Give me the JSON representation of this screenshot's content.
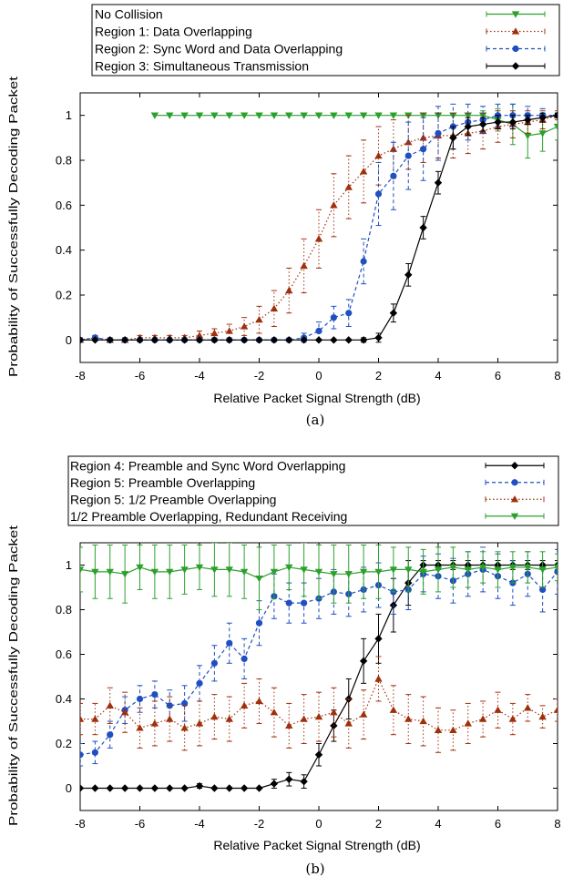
{
  "chart_data": [
    {
      "type": "line",
      "caption": "(a)",
      "xlabel": "Relative Packet Signal Strength (dB)",
      "ylabel": "Probability of Successfully Decoding Packet",
      "xlim": [
        -8,
        8
      ],
      "ylim": [
        -0.1,
        1.1
      ],
      "xticks": [
        "-8",
        "-6",
        "-4",
        "-2",
        "0",
        "2",
        "4",
        "6",
        "8"
      ],
      "yticks": [
        "0",
        "0.2",
        "0.4",
        "0.6",
        "0.8",
        "1"
      ],
      "xtick_values": [
        -8,
        -6,
        -4,
        -2,
        0,
        2,
        4,
        6,
        8
      ],
      "ytick_values": [
        0,
        0.2,
        0.4,
        0.6,
        0.8,
        1
      ],
      "legend_position": "top",
      "series": [
        {
          "name": "No Collision",
          "color": "#2ca02c",
          "marker": "triangle-down",
          "dash": "solid",
          "x": [
            -5.5,
            -5,
            -4.5,
            -4,
            -3.5,
            -3,
            -2.5,
            -2,
            -1.5,
            -1,
            -0.5,
            0,
            0.5,
            1,
            1.5,
            2,
            2.5,
            3,
            3.5,
            4,
            4.5,
            5,
            5.5,
            6,
            6.5,
            7,
            7.5,
            8
          ],
          "y": [
            1,
            1,
            1,
            1,
            1,
            1,
            1,
            1,
            1,
            1,
            1,
            1,
            1,
            1,
            1,
            1,
            1,
            1,
            1,
            1,
            1,
            1,
            1,
            0.98,
            0.96,
            0.91,
            0.92,
            0.95
          ],
          "err": [
            0,
            0,
            0,
            0,
            0,
            0,
            0,
            0,
            0,
            0,
            0,
            0,
            0,
            0,
            0,
            0,
            0,
            0,
            0,
            0,
            0,
            0,
            0.02,
            0.05,
            0.09,
            0.1,
            0.08,
            0.06
          ]
        },
        {
          "name": "Region 1: Data Overlapping",
          "color": "#a0300c",
          "marker": "triangle-up",
          "dash": "dotted",
          "x": [
            -8,
            -7.5,
            -7,
            -6.5,
            -6,
            -5.5,
            -5,
            -4.5,
            -4,
            -3.5,
            -3,
            -2.5,
            -2,
            -1.5,
            -1,
            -0.5,
            0,
            0.5,
            1,
            1.5,
            2,
            2.5,
            3,
            3.5,
            4,
            4.5,
            5,
            5.5,
            6,
            6.5,
            7,
            7.5,
            8
          ],
          "y": [
            0,
            0.01,
            0,
            0,
            0.01,
            0.01,
            0.01,
            0.01,
            0.02,
            0.03,
            0.04,
            0.06,
            0.09,
            0.14,
            0.22,
            0.33,
            0.45,
            0.6,
            0.68,
            0.75,
            0.82,
            0.85,
            0.88,
            0.9,
            0.91,
            0.91,
            0.92,
            0.93,
            0.95,
            0.96,
            0.97,
            0.98,
            1
          ],
          "err": [
            0.01,
            0.01,
            0.01,
            0.01,
            0.01,
            0.01,
            0.01,
            0.01,
            0.02,
            0.02,
            0.03,
            0.04,
            0.06,
            0.08,
            0.1,
            0.12,
            0.13,
            0.14,
            0.14,
            0.14,
            0.13,
            0.13,
            0.12,
            0.11,
            0.1,
            0.1,
            0.09,
            0.08,
            0.07,
            0.06,
            0.05,
            0.04,
            0.02
          ]
        },
        {
          "name": "Region 2: Sync Word and Data Overlapping",
          "color": "#1f4fc0",
          "marker": "circle",
          "dash": "dashed",
          "x": [
            -8,
            -7.5,
            -7,
            -6.5,
            -6,
            -5.5,
            -5,
            -4.5,
            -4,
            -3.5,
            -3,
            -2.5,
            -2,
            -1.5,
            -1,
            -0.5,
            0,
            0.5,
            1,
            1.5,
            2,
            2.5,
            3,
            3.5,
            4,
            4.5,
            5,
            5.5,
            6,
            6.5,
            7,
            7.5,
            8
          ],
          "y": [
            0,
            0.01,
            0,
            0,
            0,
            0,
            0,
            0,
            0,
            0,
            0,
            0,
            0,
            0,
            0,
            0.01,
            0.04,
            0.1,
            0.12,
            0.35,
            0.65,
            0.73,
            0.82,
            0.85,
            0.92,
            0.95,
            0.97,
            0.98,
            1,
            1,
            1,
            1,
            1
          ],
          "err": [
            0,
            0.01,
            0,
            0,
            0,
            0,
            0,
            0,
            0,
            0,
            0,
            0,
            0,
            0,
            0,
            0.02,
            0.04,
            0.05,
            0.06,
            0.1,
            0.14,
            0.15,
            0.15,
            0.14,
            0.12,
            0.1,
            0.08,
            0.06,
            0.05,
            0.05,
            0.04,
            0.03,
            0.01
          ]
        },
        {
          "name": "Region 3: Simultaneous Transmission",
          "color": "#000000",
          "marker": "diamond",
          "dash": "solid",
          "x": [
            -8,
            -7.5,
            -7,
            -6.5,
            -6,
            -5.5,
            -5,
            -4.5,
            -4,
            -3.5,
            -3,
            -2.5,
            -2,
            -1.5,
            -1,
            -0.5,
            0,
            0.5,
            1,
            1.5,
            2,
            2.5,
            3,
            3.5,
            4,
            4.5,
            5,
            5.5,
            6,
            6.5,
            7,
            7.5,
            8
          ],
          "y": [
            0,
            0,
            0,
            0,
            0,
            0,
            0,
            0,
            0,
            0,
            0,
            0,
            0,
            0,
            0,
            0,
            0,
            0,
            0,
            0,
            0.01,
            0.12,
            0.29,
            0.5,
            0.7,
            0.9,
            0.95,
            0.96,
            0.97,
            0.97,
            0.98,
            0.99,
            1
          ],
          "err": [
            0,
            0,
            0,
            0,
            0,
            0,
            0,
            0,
            0,
            0,
            0,
            0,
            0,
            0,
            0,
            0,
            0,
            0,
            0,
            0.01,
            0.02,
            0.04,
            0.05,
            0.05,
            0.05,
            0.05,
            0.04,
            0.03,
            0.03,
            0.03,
            0.02,
            0.02,
            0.01
          ]
        }
      ]
    },
    {
      "type": "line",
      "caption": "(b)",
      "xlabel": "Relative Packet Signal Strength (dB)",
      "ylabel": "Probability of Successfully Decoding Packet",
      "xlim": [
        -8,
        8
      ],
      "ylim": [
        -0.1,
        1.1
      ],
      "xticks": [
        "-8",
        "-6",
        "-4",
        "-2",
        "0",
        "2",
        "4",
        "6",
        "8"
      ],
      "yticks": [
        "0",
        "0.2",
        "0.4",
        "0.6",
        "0.8",
        "1"
      ],
      "xtick_values": [
        -8,
        -6,
        -4,
        -2,
        0,
        2,
        4,
        6,
        8
      ],
      "ytick_values": [
        0,
        0.2,
        0.4,
        0.6,
        0.8,
        1
      ],
      "legend_position": "top",
      "series": [
        {
          "name": "Region 4: Preamble and Sync Word Overlapping",
          "color": "#000000",
          "marker": "diamond",
          "dash": "solid",
          "x": [
            -8,
            -7.5,
            -7,
            -6.5,
            -6,
            -5.5,
            -5,
            -4.5,
            -4,
            -3.5,
            -3,
            -2.5,
            -2,
            -1.5,
            -1,
            -0.5,
            0,
            0.5,
            1,
            1.5,
            2,
            2.5,
            3,
            3.5,
            4,
            4.5,
            5,
            5.5,
            6,
            6.5,
            7,
            7.5,
            8
          ],
          "y": [
            0,
            0,
            0,
            0,
            0,
            0,
            0,
            0,
            0.01,
            0,
            0,
            0,
            0,
            0.02,
            0.04,
            0.03,
            0.15,
            0.28,
            0.4,
            0.57,
            0.67,
            0.82,
            0.92,
            1,
            1,
            1,
            1,
            1,
            1,
            1,
            1,
            1,
            1
          ],
          "err": [
            0,
            0,
            0,
            0,
            0,
            0,
            0,
            0,
            0.01,
            0,
            0,
            0,
            0,
            0.02,
            0.03,
            0.03,
            0.05,
            0.07,
            0.09,
            0.1,
            0.11,
            0.12,
            0.1,
            0.02,
            0.02,
            0.02,
            0.02,
            0.02,
            0.02,
            0.02,
            0.02,
            0.02,
            0.02
          ]
        },
        {
          "name": "Region 5: Preamble Overlapping",
          "color": "#1f4fc0",
          "marker": "circle",
          "dash": "dashed",
          "x": [
            -8,
            -7.5,
            -7,
            -6.5,
            -6,
            -5.5,
            -5,
            -4.5,
            -4,
            -3.5,
            -3,
            -2.5,
            -2,
            -1.5,
            -1,
            -0.5,
            0,
            0.5,
            1,
            1.5,
            2,
            2.5,
            3,
            3.5,
            4,
            4.5,
            5,
            5.5,
            6,
            6.5,
            7,
            7.5,
            8
          ],
          "y": [
            0.15,
            0.16,
            0.24,
            0.35,
            0.4,
            0.42,
            0.37,
            0.38,
            0.47,
            0.56,
            0.65,
            0.58,
            0.74,
            0.86,
            0.83,
            0.83,
            0.85,
            0.88,
            0.87,
            0.89,
            0.91,
            0.88,
            0.89,
            0.96,
            0.95,
            0.93,
            0.96,
            0.98,
            0.95,
            0.92,
            0.96,
            0.89,
            0.97
          ],
          "err": [
            0.05,
            0.05,
            0.06,
            0.06,
            0.06,
            0.06,
            0.07,
            0.08,
            0.08,
            0.08,
            0.09,
            0.09,
            0.1,
            0.1,
            0.09,
            0.09,
            0.09,
            0.1,
            0.1,
            0.1,
            0.1,
            0.1,
            0.09,
            0.08,
            0.1,
            0.1,
            0.1,
            0.1,
            0.1,
            0.1,
            0.1,
            0.1,
            0.1
          ]
        },
        {
          "name": "Region 5: 1/2 Preamble Overlapping",
          "color": "#a0300c",
          "marker": "triangle-up",
          "dash": "dotted",
          "x": [
            -8,
            -7.5,
            -7,
            -6.5,
            -6,
            -5.5,
            -5,
            -4.5,
            -4,
            -3.5,
            -3,
            -2.5,
            -2,
            -1.5,
            -1,
            -0.5,
            0,
            0.5,
            1,
            1.5,
            2,
            2.5,
            3,
            3.5,
            4,
            4.5,
            5,
            5.5,
            6,
            6.5,
            7,
            7.5,
            8
          ],
          "y": [
            0.31,
            0.31,
            0.37,
            0.34,
            0.27,
            0.29,
            0.31,
            0.27,
            0.29,
            0.32,
            0.31,
            0.37,
            0.39,
            0.34,
            0.28,
            0.31,
            0.32,
            0.34,
            0.29,
            0.33,
            0.49,
            0.35,
            0.31,
            0.3,
            0.26,
            0.26,
            0.29,
            0.31,
            0.35,
            0.31,
            0.36,
            0.32,
            0.35
          ],
          "err": [
            0.07,
            0.07,
            0.08,
            0.09,
            0.09,
            0.1,
            0.1,
            0.1,
            0.1,
            0.1,
            0.1,
            0.1,
            0.1,
            0.11,
            0.1,
            0.11,
            0.11,
            0.11,
            0.11,
            0.11,
            0.1,
            0.11,
            0.11,
            0.11,
            0.1,
            0.09,
            0.09,
            0.08,
            0.08,
            0.07,
            0.06,
            0.05,
            0.05
          ]
        },
        {
          "name": "1/2 Preamble Overlapping, Redundant Receiving",
          "color": "#2ca02c",
          "marker": "triangle-down",
          "dash": "solid",
          "x": [
            -8,
            -7.5,
            -7,
            -6.5,
            -6,
            -5.5,
            -5,
            -4.5,
            -4,
            -3.5,
            -3,
            -2.5,
            -2,
            -1.5,
            -1,
            -0.5,
            0,
            0.5,
            1,
            1.5,
            2,
            2.5,
            3,
            3.5,
            4,
            4.5,
            5,
            5.5,
            6,
            6.5,
            7,
            7.5,
            8
          ],
          "y": [
            0.98,
            0.97,
            0.97,
            0.96,
            0.99,
            0.97,
            0.97,
            0.98,
            0.99,
            0.98,
            0.98,
            0.97,
            0.94,
            0.97,
            0.99,
            0.98,
            0.97,
            0.96,
            0.96,
            0.97,
            0.97,
            0.98,
            0.98,
            0.97,
            0.98,
            0.99,
            0.98,
            0.99,
            0.98,
            0.99,
            0.99,
            0.98,
            0.99
          ],
          "err": [
            0.1,
            0.12,
            0.12,
            0.13,
            0.1,
            0.12,
            0.12,
            0.11,
            0.1,
            0.12,
            0.12,
            0.12,
            0.14,
            0.12,
            0.1,
            0.12,
            0.12,
            0.13,
            0.13,
            0.12,
            0.12,
            0.1,
            0.1,
            0.1,
            0.1,
            0.09,
            0.08,
            0.07,
            0.08,
            0.07,
            0.07,
            0.08,
            0.06
          ]
        }
      ]
    }
  ]
}
